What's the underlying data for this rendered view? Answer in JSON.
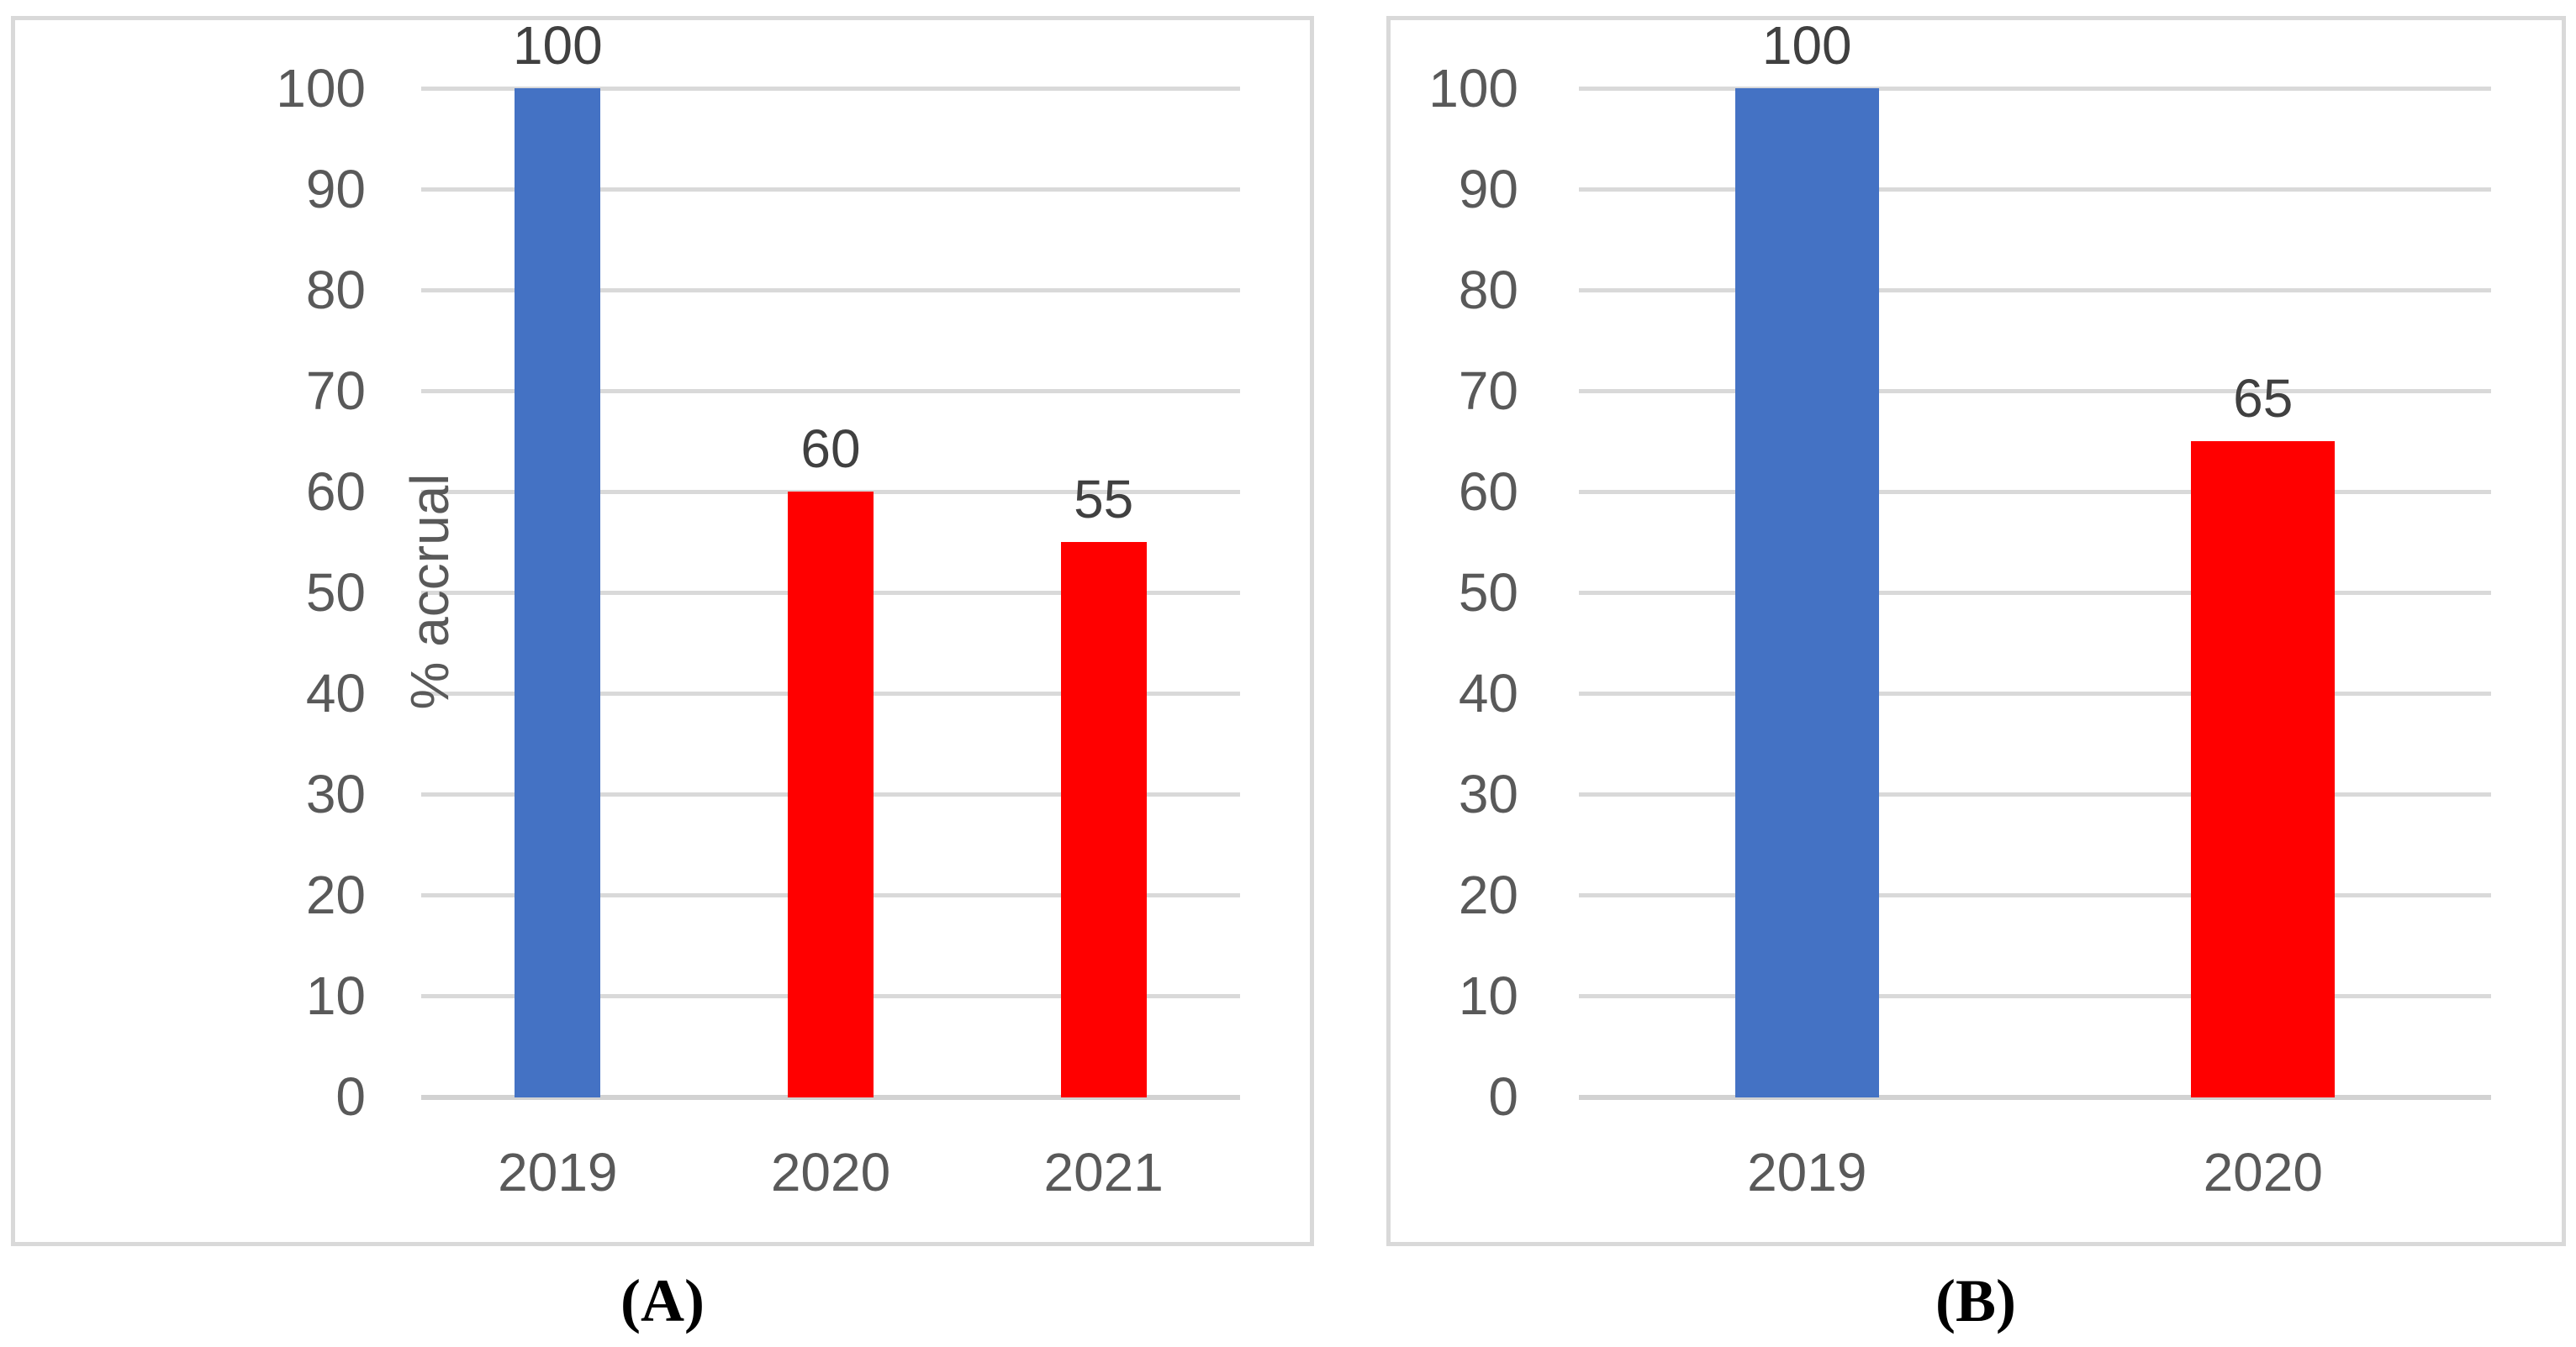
{
  "figure": {
    "background": "#ffffff",
    "border_color": "#d9d9d9",
    "gridline_color": "#d9d9d9",
    "axis_line_color": "#d2d2d2",
    "tick_text_color": "#595959",
    "data_label_color": "#404040",
    "caption_color": "#000000"
  },
  "chart_data": [
    {
      "type": "bar",
      "panel": "A",
      "caption": "(A)",
      "title": "",
      "xlabel": "",
      "ylabel": "% accrual",
      "categories": [
        "2019",
        "2020",
        "2021"
      ],
      "values": [
        100,
        60,
        55
      ],
      "data_labels": [
        "100",
        "60",
        "55"
      ],
      "bar_colors": [
        "#4472C4",
        "#FF0000",
        "#FF0000"
      ],
      "ylim": [
        0,
        100
      ],
      "yticks": [
        0,
        10,
        20,
        30,
        40,
        50,
        60,
        70,
        80,
        90,
        100
      ],
      "grid": true,
      "legend": false
    },
    {
      "type": "bar",
      "panel": "B",
      "caption": "(B)",
      "title": "",
      "xlabel": "",
      "ylabel": "",
      "categories": [
        "2019",
        "2020"
      ],
      "values": [
        100,
        65
      ],
      "data_labels": [
        "100",
        "65"
      ],
      "bar_colors": [
        "#4472C4",
        "#FF0000"
      ],
      "ylim": [
        0,
        100
      ],
      "yticks": [
        0,
        10,
        20,
        30,
        40,
        50,
        60,
        70,
        80,
        90,
        100
      ],
      "grid": true,
      "legend": false
    }
  ]
}
